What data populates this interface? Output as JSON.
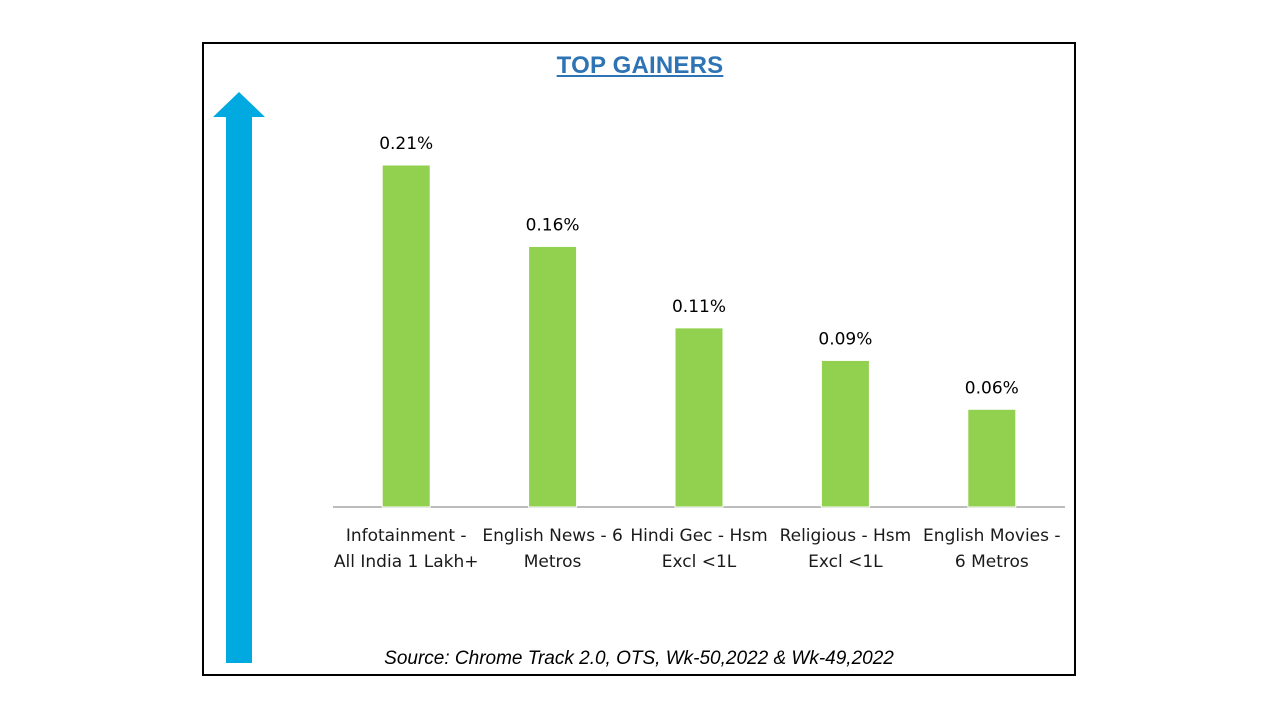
{
  "chart_data": {
    "type": "bar",
    "title": "TOP GAINERS",
    "categories": [
      [
        "Infotainment -",
        "All India 1 Lakh+"
      ],
      [
        "English News - 6",
        "Metros"
      ],
      [
        "Hindi Gec - Hsm",
        "Excl <1L"
      ],
      [
        "Religious - Hsm",
        "Excl <1L"
      ],
      [
        "English Movies -",
        "6 Metros"
      ]
    ],
    "values": [
      0.21,
      0.16,
      0.11,
      0.09,
      0.06
    ],
    "data_labels": [
      "0.21%",
      "0.16%",
      "0.11%",
      "0.09%",
      "0.06%"
    ],
    "ylim": [
      0,
      0.21
    ],
    "grid": false,
    "bar_color": "#92D050",
    "arrow_color": "#00A9E0"
  },
  "footer": {
    "source": "Source: Chrome Track 2.0, OTS, Wk-50,2022 & Wk-49,2022"
  },
  "colors": {
    "title": "#2E74B5",
    "axis": "#A6A6A6"
  }
}
